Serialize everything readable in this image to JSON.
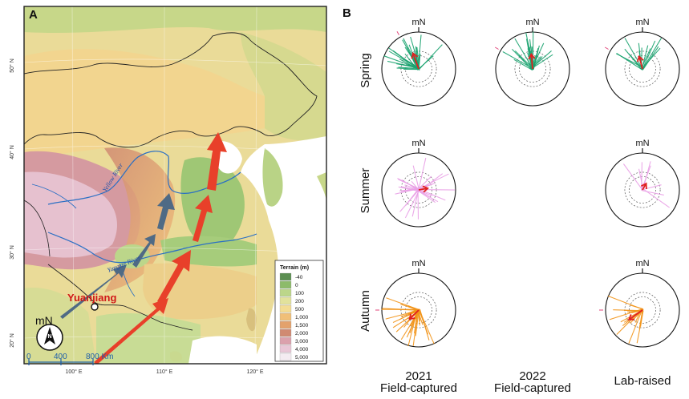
{
  "panel_a": {
    "letter": "A",
    "lat_labels": [
      "50° N",
      "40° N",
      "30° N",
      "20° N"
    ],
    "lon_labels": [
      "100° E",
      "110° E",
      "120° E"
    ],
    "rivers": {
      "yellow": "Yellow River",
      "yangtze": "Yangtze River"
    },
    "site": "Yuanjiang",
    "north": "mN",
    "scale": {
      "ticks": [
        "0",
        "400",
        "800 Km"
      ]
    },
    "legend": {
      "title": "Terrain (m)",
      "items": [
        {
          "label": "-40",
          "color": "#5c8f52"
        },
        {
          "label": "0",
          "color": "#8dbb6a"
        },
        {
          "label": "100",
          "color": "#bcd68a"
        },
        {
          "label": "200",
          "color": "#e2e29c"
        },
        {
          "label": "500",
          "color": "#f3dc93"
        },
        {
          "label": "1,000",
          "color": "#f0bf78"
        },
        {
          "label": "1,500",
          "color": "#e3a26c"
        },
        {
          "label": "2,000",
          "color": "#d08a72"
        },
        {
          "label": "3,000",
          "color": "#dba1ac"
        },
        {
          "label": "4,000",
          "color": "#e9c7d6"
        },
        {
          "label": "5,000",
          "color": "#f4ecf1"
        }
      ]
    }
  },
  "panel_b": {
    "letter": "B",
    "north": "mN",
    "rows": [
      "Spring",
      "Summer",
      "Autumn"
    ],
    "columns": [
      {
        "year": "2021",
        "sub": "Field-captured"
      },
      {
        "year": "2022",
        "sub": "Field-captured"
      },
      {
        "year": "",
        "sub": "Lab-raised"
      }
    ],
    "colors": {
      "Spring": "#1aa36f",
      "Summer": "#e9a0e6",
      "Autumn": "#f29418",
      "mean_arrow": "#e02020"
    }
  }
}
